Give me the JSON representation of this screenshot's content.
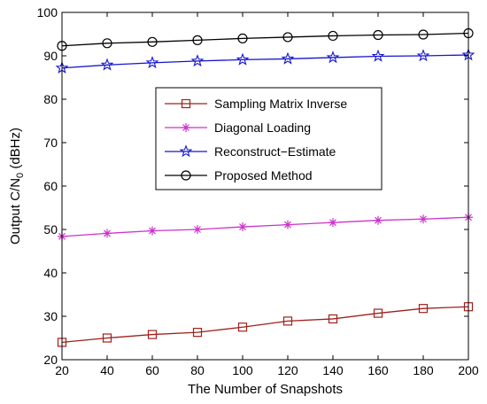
{
  "chart_data": {
    "type": "line",
    "title": "",
    "xlabel": "The Number of Snapshots",
    "ylabel": "Output C/N",
    "ylabel_subscript": "0",
    "ylabel_unit": "(dBHz)",
    "xlim": [
      20,
      200
    ],
    "ylim": [
      20,
      100
    ],
    "x_ticks": [
      20,
      40,
      60,
      80,
      100,
      120,
      140,
      160,
      180,
      200
    ],
    "y_ticks": [
      20,
      30,
      40,
      50,
      60,
      70,
      80,
      90,
      100
    ],
    "grid": false,
    "legend_position": "center",
    "x": [
      20,
      40,
      60,
      80,
      100,
      120,
      140,
      160,
      180,
      200
    ],
    "series": [
      {
        "name": "Sampling Matrix Inverse",
        "color": "#a0201a",
        "marker": "square",
        "values": [
          24.0,
          25.0,
          25.8,
          26.3,
          27.5,
          28.9,
          29.4,
          30.7,
          31.8,
          32.2
        ]
      },
      {
        "name": "Diagonal Loading",
        "color": "#cc33cc",
        "marker": "asterisk",
        "values": [
          48.4,
          49.1,
          49.7,
          50.0,
          50.6,
          51.1,
          51.6,
          52.1,
          52.4,
          52.8
        ]
      },
      {
        "name": "Reconstruct−Estimate",
        "color": "#1515d0",
        "marker": "star",
        "values": [
          87.2,
          87.9,
          88.4,
          88.8,
          89.1,
          89.3,
          89.6,
          89.9,
          90.0,
          90.2
        ]
      },
      {
        "name": "Proposed Method",
        "color": "#000000",
        "marker": "circle",
        "values": [
          92.3,
          92.9,
          93.2,
          93.6,
          94.0,
          94.3,
          94.6,
          94.8,
          94.9,
          95.2
        ]
      }
    ]
  }
}
